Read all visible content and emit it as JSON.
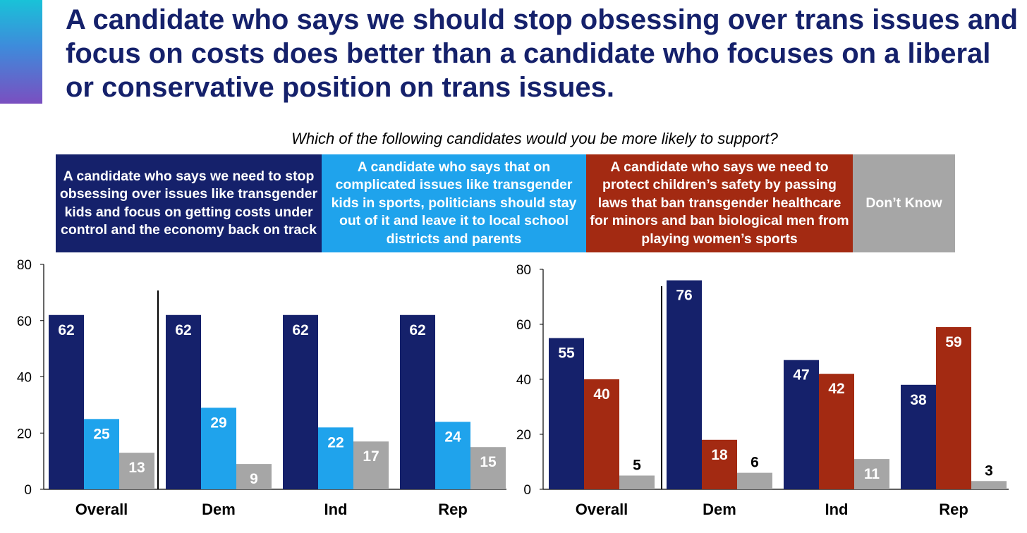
{
  "title": "A candidate who says we should stop obsessing over trans issues and focus on costs does better than a candidate who focuses on a liberal or conservative position on trans issues.",
  "question": "Which of the following candidates would you be more likely to support?",
  "colors": {
    "dark_navy": "#15216b",
    "light_blue": "#1fa3ec",
    "red": "#a32a12",
    "gray": "#a6a6a6"
  },
  "legend": [
    {
      "label": "A candidate who says we need to stop obsessing over issues like transgender kids and focus on getting costs under control and the economy back on track",
      "color": "#15216b"
    },
    {
      "label": "A candidate who says that on complicated issues like transgender kids in sports, politicians should stay out of it and leave it to local school districts and parents",
      "color": "#1fa3ec"
    },
    {
      "label": "A candidate who says we need to protect children’s safety by passing laws that ban transgender healthcare for minors and ban biological men from playing women’s sports",
      "color": "#a32a12"
    },
    {
      "label": "Don’t Know",
      "color": "#a6a6a6"
    }
  ],
  "chart_data": [
    {
      "type": "bar",
      "categories": [
        "Overall",
        "Dem",
        "Ind",
        "Rep"
      ],
      "ylim": [
        0,
        80
      ],
      "yticks": [
        0,
        20,
        40,
        60,
        80
      ],
      "series": [
        {
          "name": "A candidate who says we need to stop obsessing over issues like transgender kids and focus on getting costs under control and the economy back on track",
          "color": "#15216b",
          "values": [
            62,
            62,
            62,
            62
          ]
        },
        {
          "name": "A candidate who says that on complicated issues like transgender kids in sports, politicians should stay out of it and leave it to local school districts and parents",
          "color": "#1fa3ec",
          "values": [
            25,
            29,
            22,
            24
          ]
        },
        {
          "name": "Don’t Know",
          "color": "#a6a6a6",
          "values": [
            13,
            9,
            17,
            15
          ]
        }
      ]
    },
    {
      "type": "bar",
      "categories": [
        "Overall",
        "Dem",
        "Ind",
        "Rep"
      ],
      "ylim": [
        0,
        80
      ],
      "yticks": [
        0,
        20,
        40,
        60,
        80
      ],
      "series": [
        {
          "name": "A candidate who says we need to stop obsessing over issues like transgender kids and focus on getting costs under control and the economy back on track",
          "color": "#15216b",
          "values": [
            55,
            76,
            47,
            38
          ]
        },
        {
          "name": "A candidate who says we need to protect children’s safety by passing laws that ban transgender healthcare for minors and ban biological men from playing women’s sports",
          "color": "#a32a12",
          "values": [
            40,
            18,
            42,
            59
          ]
        },
        {
          "name": "Don’t Know",
          "color": "#a6a6a6",
          "values": [
            5,
            6,
            11,
            3
          ]
        }
      ]
    }
  ]
}
